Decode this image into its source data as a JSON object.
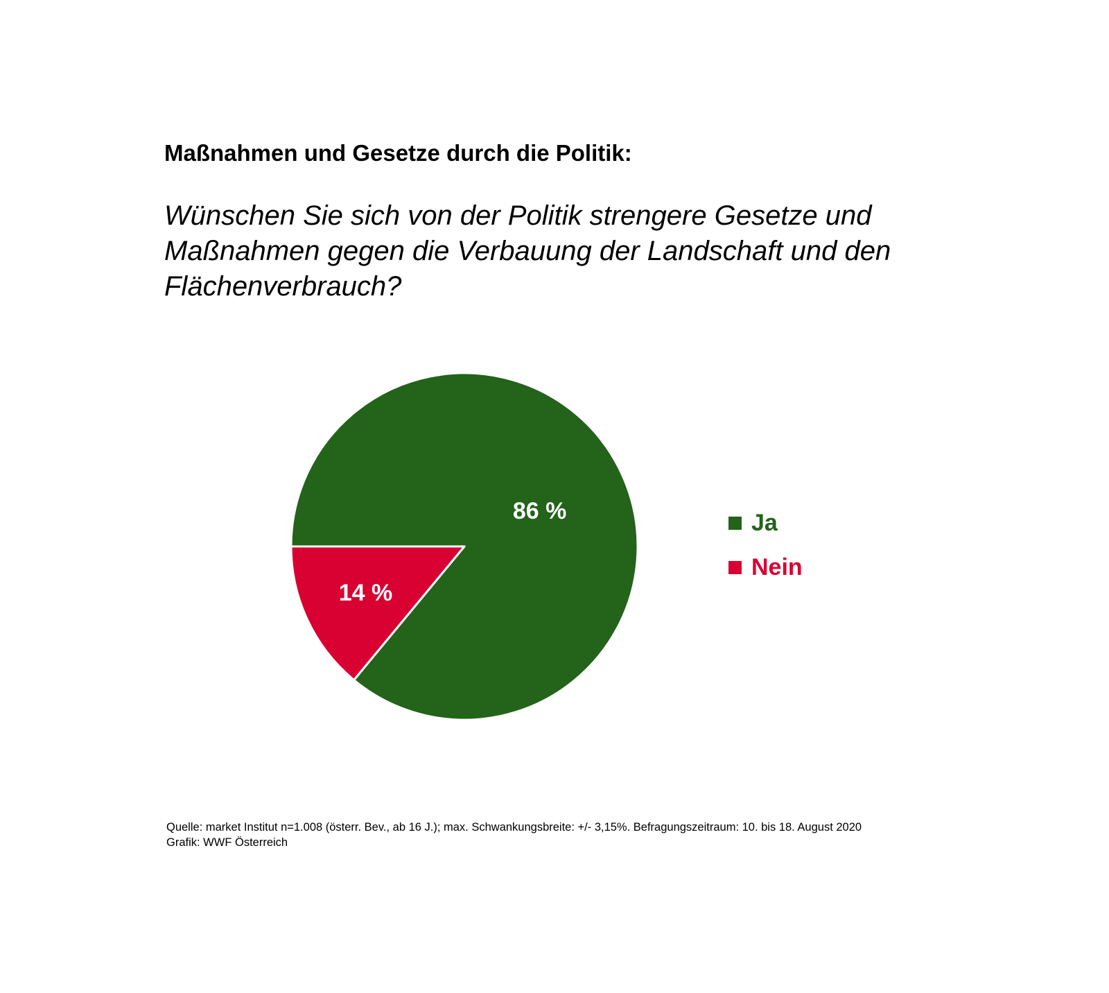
{
  "heading": "Maßnahmen und Gesetze durch die Politik:",
  "question": "Wünschen Sie sich von der Politik strengere Gesetze und Maßnahmen gegen die Verbauung der Landschaft und den Flächenverbrauch?",
  "chart_data": {
    "type": "pie",
    "title": "",
    "slices": [
      {
        "label": "Ja",
        "value": 86,
        "display": "86 %",
        "color": "#23631a"
      },
      {
        "label": "Nein",
        "value": 14,
        "display": "14 %",
        "color": "#d90032"
      }
    ],
    "legend_position": "right",
    "slice_border_color": "#ffffff",
    "label_color": "#ffffff"
  },
  "footer": {
    "source": "Quelle: market Institut n=1.008 (österr. Bev., ab 16 J.); max. Schwankungsbreite: +/- 3,15%. Befragungszeitraum: 10. bis 18. August 2020",
    "credit": "Grafik: WWF Österreich"
  }
}
